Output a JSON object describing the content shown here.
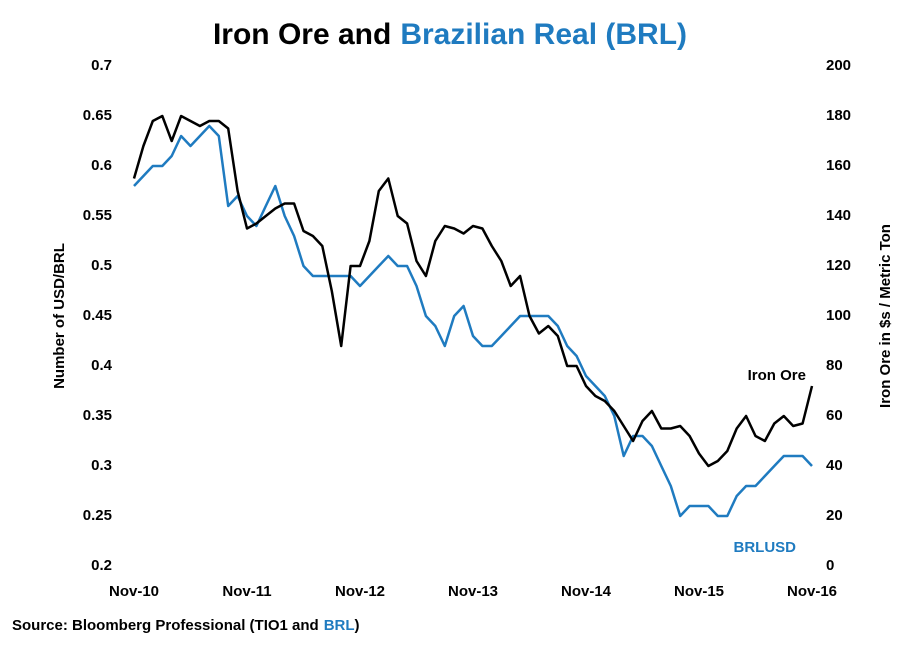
{
  "chart_data": {
    "type": "line",
    "title": [
      "Iron Ore and",
      "Brazilian Real (BRL)"
    ],
    "title_colors": [
      "#000000",
      "#1f7bc0"
    ],
    "source": [
      "Source: Bloomberg Professional  (TIO1 and",
      "BRL",
      ")"
    ],
    "y_label": "Number of USD/BRL",
    "y2_label": "Iron Ore in $s / Metric Ton",
    "x": [
      "Nov-10",
      "Dec-10",
      "Jan-11",
      "Feb-11",
      "Mar-11",
      "Apr-11",
      "May-11",
      "Jun-11",
      "Jul-11",
      "Aug-11",
      "Sep-11",
      "Oct-11",
      "Nov-11",
      "Dec-11",
      "Jan-12",
      "Feb-12",
      "Mar-12",
      "Apr-12",
      "May-12",
      "Jun-12",
      "Jul-12",
      "Aug-12",
      "Sep-12",
      "Oct-12",
      "Nov-12",
      "Dec-12",
      "Jan-13",
      "Feb-13",
      "Mar-13",
      "Apr-13",
      "May-13",
      "Jun-13",
      "Jul-13",
      "Aug-13",
      "Sep-13",
      "Oct-13",
      "Nov-13",
      "Dec-13",
      "Jan-14",
      "Feb-14",
      "Mar-14",
      "Apr-14",
      "May-14",
      "Jun-14",
      "Jul-14",
      "Aug-14",
      "Sep-14",
      "Oct-14",
      "Nov-14",
      "Dec-14",
      "Jan-15",
      "Feb-15",
      "Mar-15",
      "Apr-15",
      "May-15",
      "Jun-15",
      "Jul-15",
      "Aug-15",
      "Sep-15",
      "Oct-15",
      "Nov-15",
      "Dec-15",
      "Jan-16",
      "Feb-16",
      "Mar-16",
      "Apr-16",
      "May-16",
      "Jun-16",
      "Jul-16",
      "Aug-16",
      "Sep-16",
      "Oct-16",
      "Nov-16"
    ],
    "xticks": [
      "Nov-10",
      "Nov-11",
      "Nov-12",
      "Nov-13",
      "Nov-14",
      "Nov-15",
      "Nov-16"
    ],
    "ylim": [
      0.2,
      0.7
    ],
    "yticks": [
      0.2,
      0.25,
      0.3,
      0.35,
      0.4,
      0.45,
      0.5,
      0.55,
      0.6,
      0.65,
      0.7
    ],
    "y2lim": [
      0,
      200
    ],
    "y2ticks": [
      0,
      20,
      40,
      60,
      80,
      100,
      120,
      140,
      160,
      180,
      200
    ],
    "series": [
      {
        "name": "BRLUSD",
        "color": "#1f7bc0",
        "values": [
          0.58,
          0.59,
          0.6,
          0.6,
          0.61,
          0.63,
          0.62,
          0.63,
          0.64,
          0.63,
          0.56,
          0.57,
          0.55,
          0.54,
          0.56,
          0.58,
          0.55,
          0.53,
          0.5,
          0.49,
          0.49,
          0.49,
          0.49,
          0.49,
          0.48,
          0.49,
          0.5,
          0.51,
          0.5,
          0.5,
          0.48,
          0.45,
          0.44,
          0.42,
          0.45,
          0.46,
          0.43,
          0.42,
          0.42,
          0.43,
          0.44,
          0.45,
          0.45,
          0.45,
          0.45,
          0.44,
          0.42,
          0.41,
          0.39,
          0.38,
          0.37,
          0.35,
          0.31,
          0.33,
          0.33,
          0.32,
          0.3,
          0.28,
          0.25,
          0.26,
          0.26,
          0.26,
          0.25,
          0.25,
          0.27,
          0.28,
          0.28,
          0.29,
          0.3,
          0.31,
          0.31,
          0.31,
          0.3
        ]
      },
      {
        "name": "Iron Ore",
        "color": "#000000",
        "axis": "y2",
        "values": [
          155,
          168,
          178,
          180,
          170,
          180,
          178,
          176,
          178,
          178,
          175,
          150,
          135,
          137,
          140,
          143,
          145,
          145,
          134,
          132,
          128,
          110,
          88,
          120,
          120,
          130,
          150,
          155,
          140,
          137,
          122,
          116,
          130,
          136,
          135,
          133,
          136,
          135,
          128,
          122,
          112,
          116,
          100,
          93,
          96,
          92,
          80,
          80,
          72,
          68,
          66,
          62,
          56,
          50,
          58,
          62,
          55,
          55,
          56,
          52,
          45,
          40,
          42,
          46,
          55,
          60,
          52,
          50,
          57,
          60,
          56,
          57,
          72
        ]
      }
    ]
  }
}
